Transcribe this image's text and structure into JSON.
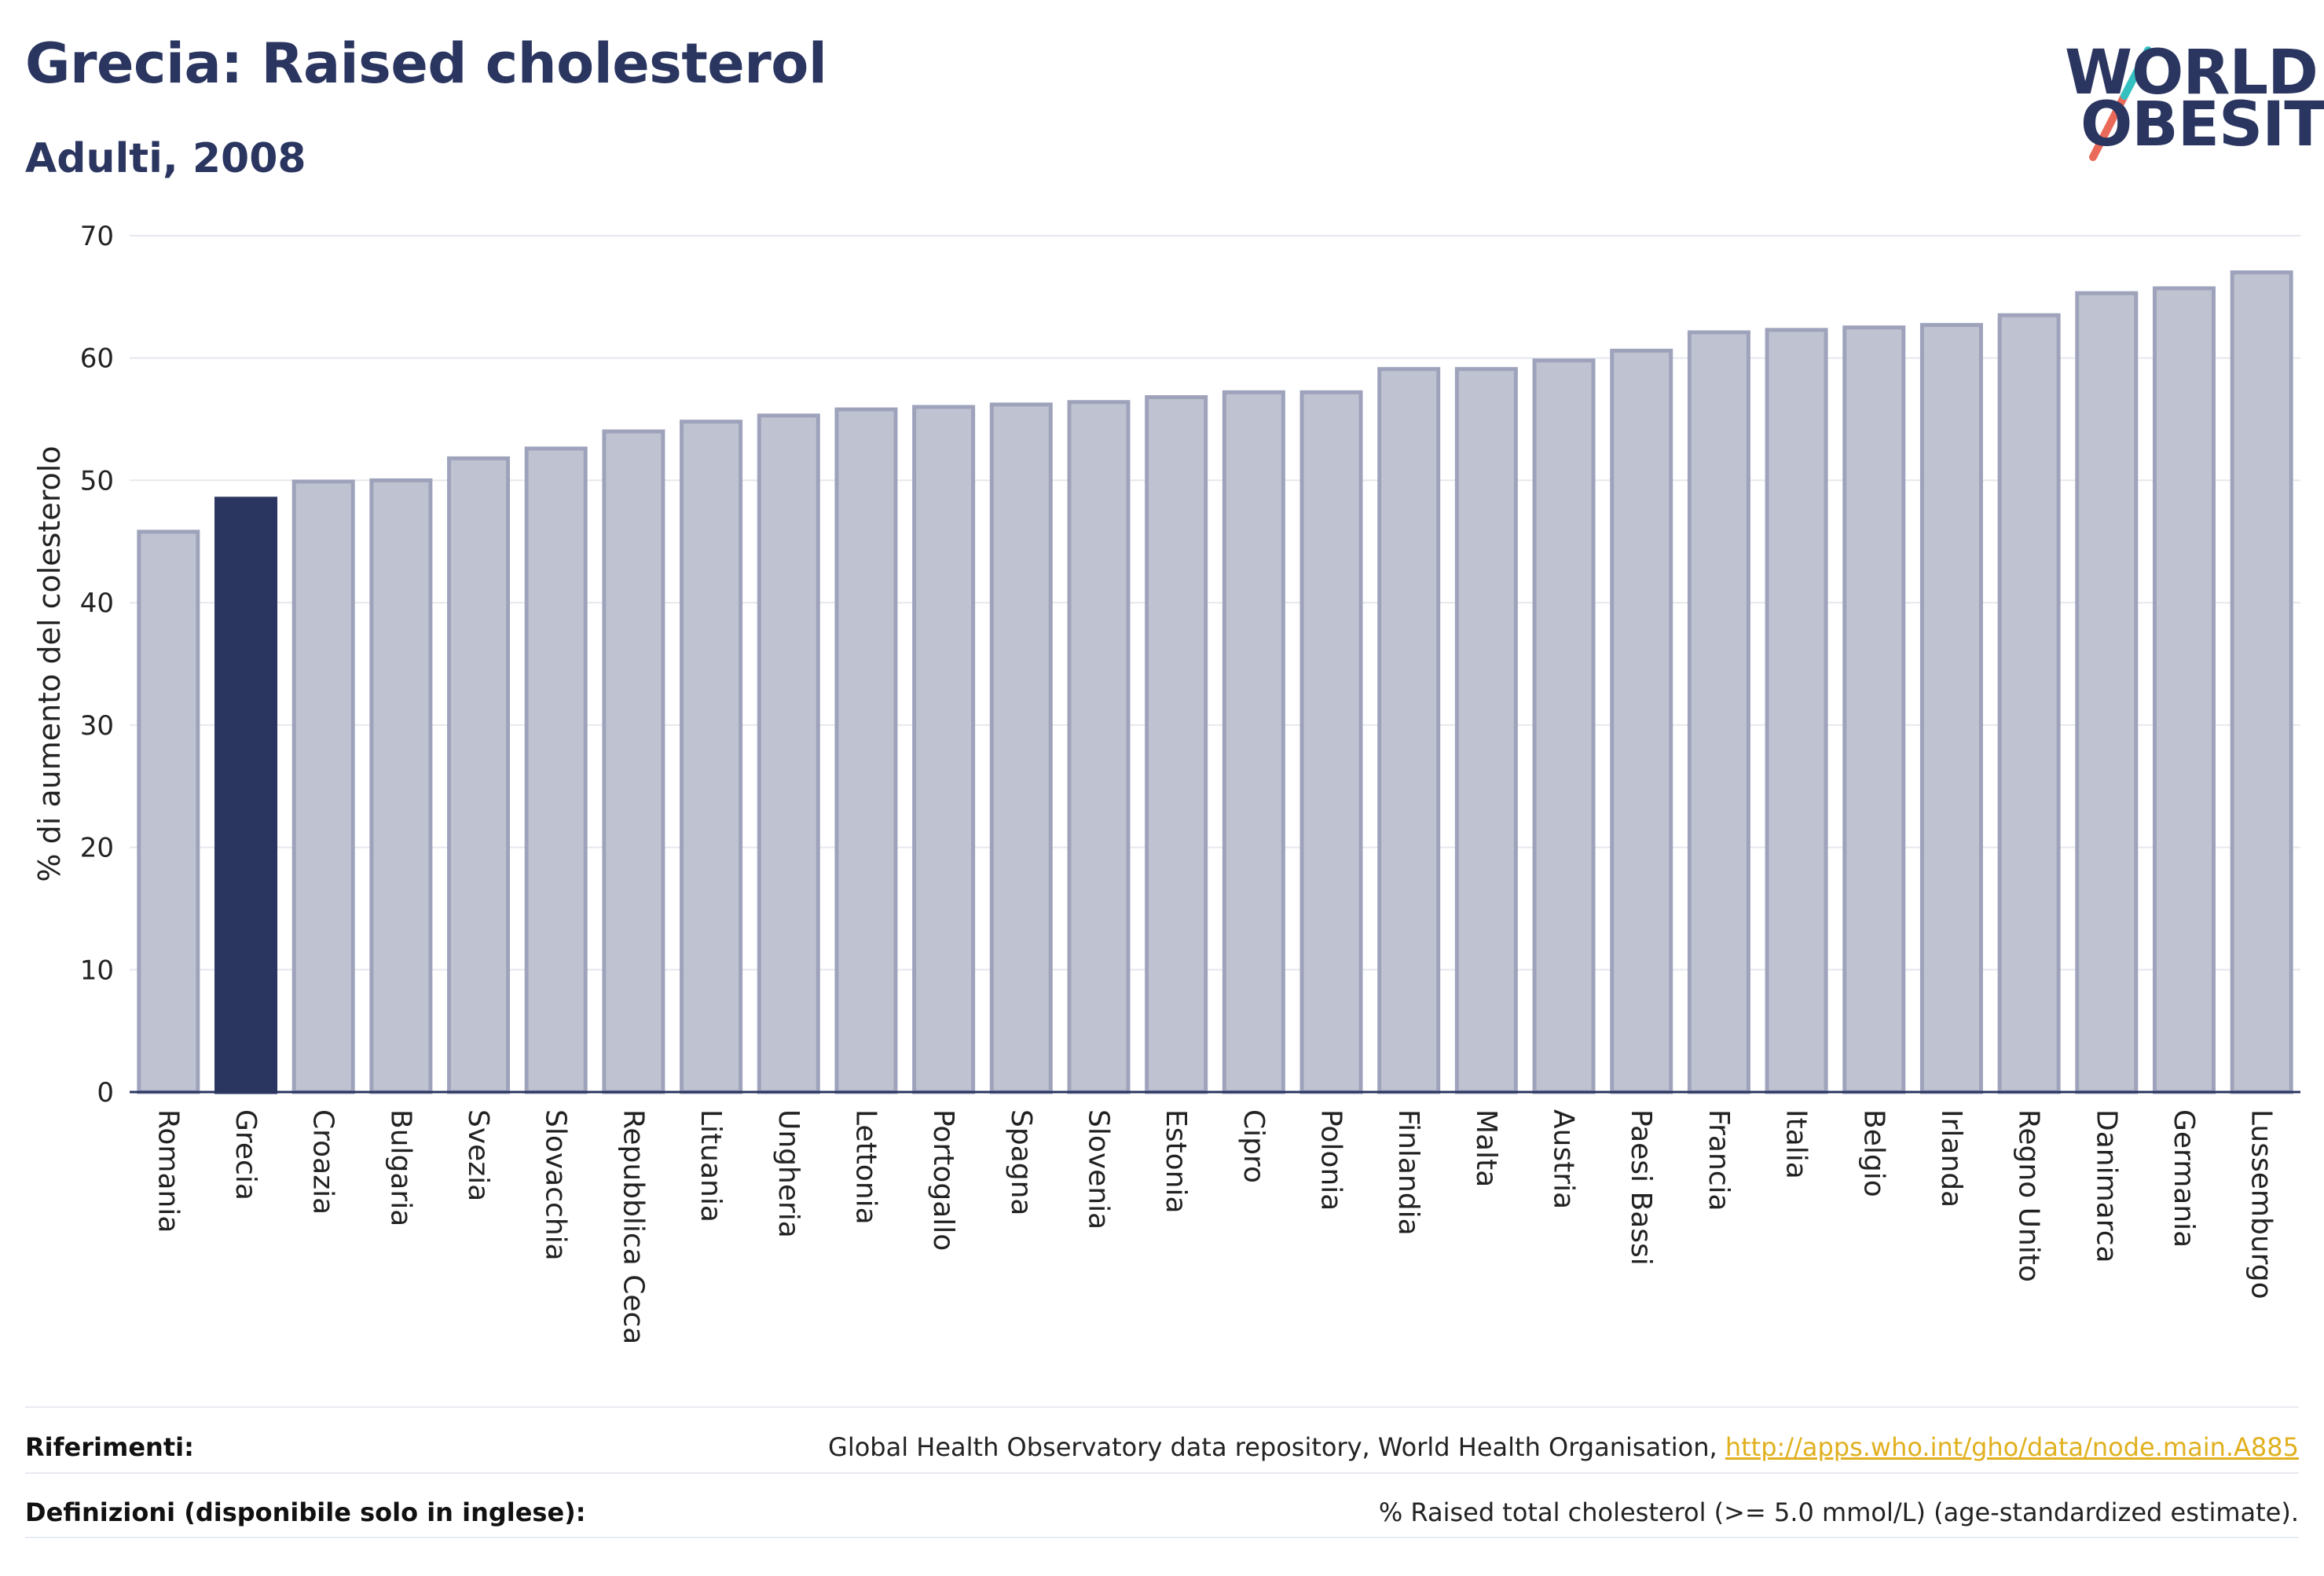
{
  "header": {
    "title": "Grecia: Raised cholesterol",
    "subtitle": "Adulti, 2008"
  },
  "logo": {
    "line1": "WORLD",
    "line2": "OBESITY"
  },
  "colors": {
    "highlight": "#2a3560",
    "bar": "#bfc3d1",
    "bar_border": "#9ea3bb",
    "axis": "#2a3560",
    "grid": "#e6e8ee",
    "link": "#e0b01e",
    "logo_teal": "#35c0c0",
    "logo_red": "#ea6a5a"
  },
  "chart_data": {
    "type": "bar",
    "categories": [
      "Romania",
      "Grecia",
      "Croazia",
      "Bulgaria",
      "Svezia",
      "Slovacchia",
      "Repubblica Ceca",
      "Lituania",
      "Ungheria",
      "Lettonia",
      "Portogallo",
      "Spagna",
      "Slovenia",
      "Estonia",
      "Cipro",
      "Polonia",
      "Finlandia",
      "Malta",
      "Austria",
      "Paesi Bassi",
      "Francia",
      "Italia",
      "Belgio",
      "Irlanda",
      "Regno Unito",
      "Danimarca",
      "Germania",
      "Lussemburgo"
    ],
    "values": [
      45.8,
      48.5,
      49.9,
      50.0,
      51.8,
      52.6,
      54.0,
      54.8,
      55.3,
      55.8,
      56.0,
      56.2,
      56.4,
      56.8,
      57.2,
      57.2,
      59.1,
      59.1,
      59.8,
      60.6,
      62.1,
      62.3,
      62.5,
      62.7,
      63.5,
      65.3,
      65.7,
      67.0
    ],
    "highlight": "Grecia",
    "ylabel": "% di aumento del colesterolo",
    "ylim": [
      0,
      70
    ],
    "yticks": [
      0,
      10,
      20,
      30,
      40,
      50,
      60,
      70
    ],
    "grid": true
  },
  "footer": {
    "references_label": "Riferimenti:",
    "references_text": "Global Health Observatory data repository, World Health Organisation,",
    "references_link": "http://apps.who.int/gho/data/node.main.A885",
    "definitions_label": "Definizioni (disponibile solo in inglese):",
    "definitions_text": "% Raised total cholesterol (>= 5.0 mmol/L) (age-standardized estimate)."
  }
}
